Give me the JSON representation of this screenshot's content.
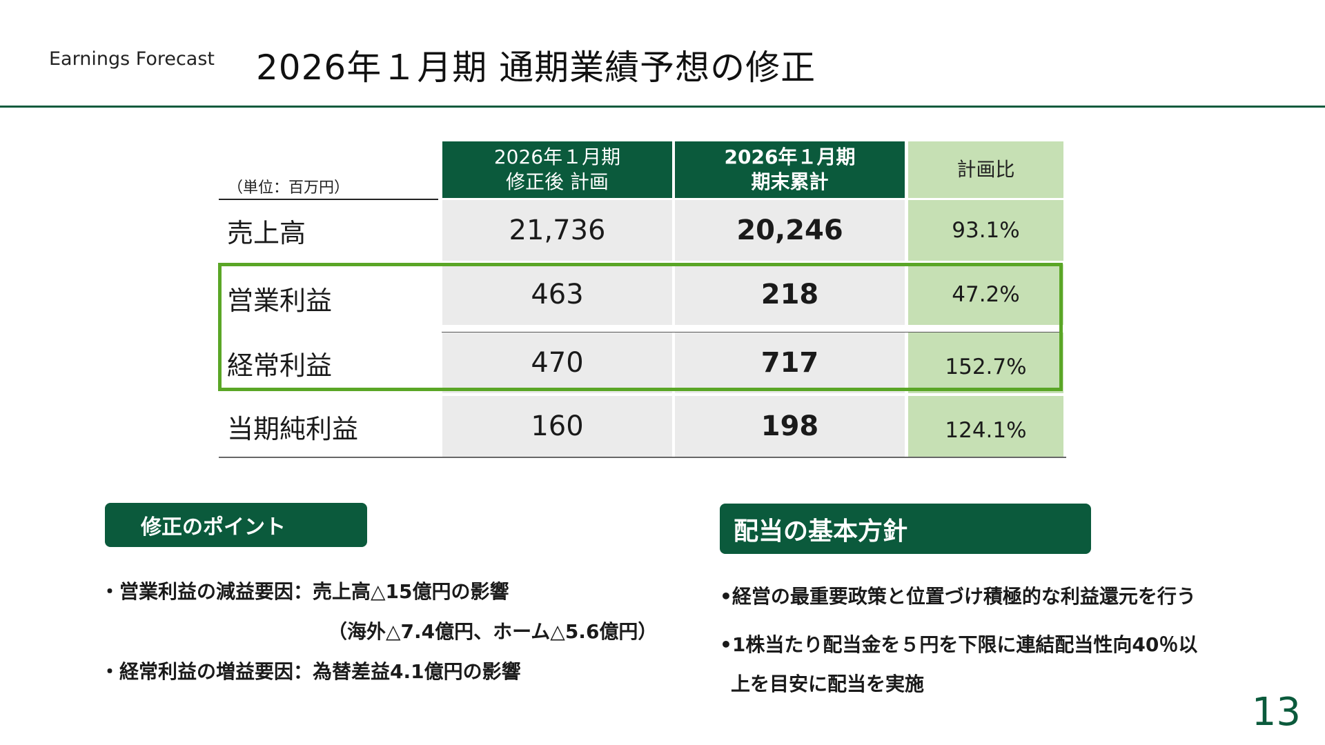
{
  "header": {
    "subtitle": "Earnings Forecast",
    "title": "2026年１月期 通期業績予想の修正"
  },
  "table": {
    "unit_label": "（単位：百万円）",
    "col1_line1": "2026年１月期",
    "col1_line2": "修正後 計画",
    "col2_line1": "2026年１月期",
    "col2_line2": "期末累計",
    "col3": "計画比",
    "rows": [
      {
        "label": "売上高",
        "plan": "21,736",
        "actual": "20,246",
        "ratio": "93.1%"
      },
      {
        "label": "営業利益",
        "plan": "463",
        "actual": "218",
        "ratio": "47.2%"
      },
      {
        "label": "経常利益",
        "plan": "470",
        "actual": "717",
        "ratio": "152.7%"
      },
      {
        "label": "当期純利益",
        "plan": "160",
        "actual": "198",
        "ratio": "124.1%"
      }
    ]
  },
  "revision": {
    "heading": "修正のポイント",
    "line1": "・営業利益の減益要因：売上高△15億円の影響",
    "line2": "（海外△7.4億円、ホーム△5.6億円）",
    "line3": "・経常利益の増益要因：為替差益4.1億円の影響"
  },
  "dividend": {
    "heading": "配当の基本方針",
    "line1": "•経営の最重要政策と位置づけ積極的な利益還元を行う",
    "line2": "•1株当たり配当金を５円を下限に連結配当性向40％以",
    "line3": "上を目安に配当を実施"
  },
  "page_number": "13",
  "colors": {
    "brand_green": "#0b5a3c",
    "light_green": "#c6e0b4",
    "highlight_green": "#5aa626",
    "grey_cell": "#ebebeb"
  }
}
